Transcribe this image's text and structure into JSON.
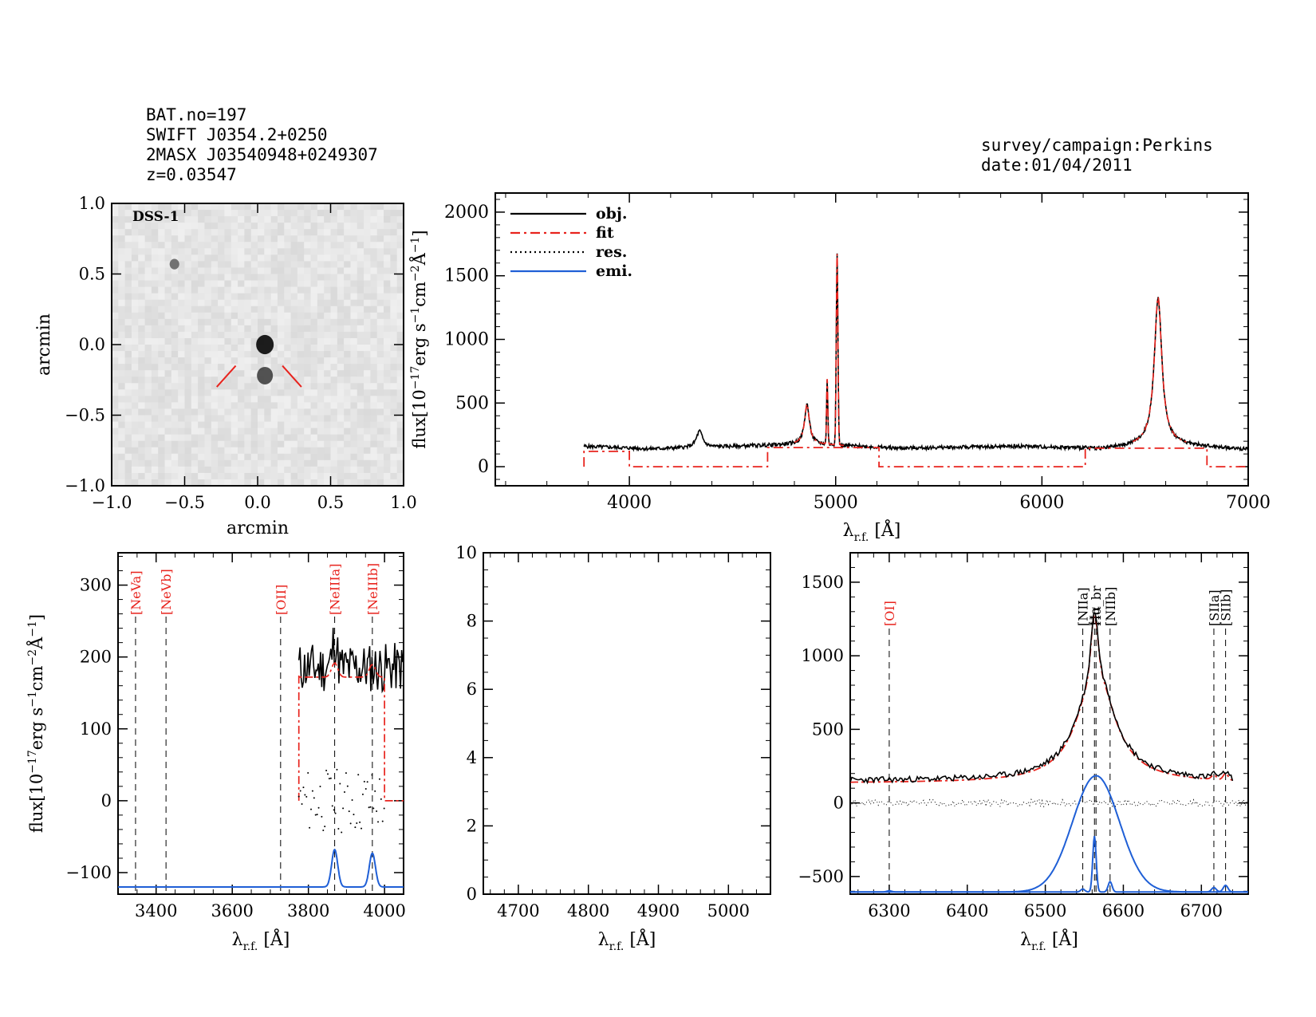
{
  "header": {
    "left_lines": [
      "BAT.no=197",
      "SWIFT J0354.2+0250",
      "2MASX J03540948+0249307",
      "z=0.03547"
    ],
    "right_lines": [
      "survey/campaign:Perkins",
      "date:01/04/2011"
    ]
  },
  "colors": {
    "object": "#000000",
    "fit": "#e8231d",
    "residual": "#000000",
    "emission": "#1f5fd6",
    "image_background": "#e6e6e6"
  },
  "image_panel": {
    "label": "DSS-1",
    "xlabel": "arcmin",
    "ylabel": "arcmin",
    "xlim": [
      -1.0,
      1.0
    ],
    "ylim": [
      -1.0,
      1.0
    ],
    "xticks": [
      "−1.0",
      "−0.5",
      "0.0",
      "0.5",
      "1.0"
    ],
    "yticks": [
      "1.0",
      "0.5",
      "0.0",
      "−0.5",
      "−1.0"
    ],
    "sources": [
      {
        "x": 0.05,
        "y": 0.0,
        "brightness": "bright"
      },
      {
        "x": 0.05,
        "y": -0.22,
        "brightness": "medium"
      },
      {
        "x": -0.57,
        "y": 0.57,
        "brightness": "faint"
      }
    ],
    "markers": "two red ticks pointing at center"
  },
  "chart_data": [
    {
      "type": "line",
      "panel": "full-spectrum",
      "xlabel": "λ_r.f. [Å]",
      "ylabel": "flux[10⁻¹⁷erg s⁻¹cm⁻²Å⁻¹]",
      "xlim": [
        3350,
        7000
      ],
      "ylim": [
        -150,
        2150
      ],
      "xticks": [
        4000,
        5000,
        6000,
        7000
      ],
      "yticks": [
        0,
        500,
        1000,
        1500,
        2000
      ],
      "legend": [
        "obj.",
        "fit",
        "res.",
        "emi."
      ],
      "legend_position": "top-left",
      "series": [
        {
          "name": "obj.",
          "style": "solid-black",
          "continuum": [
            [
              3780,
              160
            ],
            [
              3950,
              150
            ],
            [
              4100,
              140
            ],
            [
              4350,
              150
            ],
            [
              4700,
              170
            ],
            [
              4860,
              180
            ],
            [
              5300,
              145
            ],
            [
              5900,
              160
            ],
            [
              6300,
              140
            ],
            [
              6560,
              180
            ],
            [
              7000,
              135
            ]
          ],
          "lines": [
            {
              "center": 4340,
              "peak": 300,
              "width": 18
            },
            {
              "center": 4861,
              "peak": 480,
              "width": 14
            },
            {
              "center": 4959,
              "peak": 660,
              "width": 3
            },
            {
              "center": 5007,
              "peak": 1650,
              "width": 4
            },
            {
              "center": 6563,
              "peak": 1320,
              "width": 22
            }
          ]
        },
        {
          "name": "fit",
          "style": "dashdot-red",
          "segments": [
            [
              3780,
              0
            ],
            [
              3780,
              120
            ],
            [
              4000,
              120
            ],
            [
              4000,
              0
            ],
            [
              4670,
              0
            ],
            [
              4670,
              150
            ],
            [
              5210,
              150
            ],
            [
              5210,
              0
            ],
            [
              6210,
              0
            ],
            [
              6210,
              145
            ],
            [
              6800,
              145
            ],
            [
              6800,
              0
            ],
            [
              7000,
              0
            ]
          ]
        }
      ]
    },
    {
      "type": "line",
      "panel": "blue-region",
      "xlabel": "λ_r.f. [Å]",
      "ylabel": "flux[10⁻¹⁷erg s⁻¹cm⁻²Å⁻¹]",
      "xlim": [
        3300,
        4050
      ],
      "ylim": [
        -130,
        345
      ],
      "xticks": [
        3400,
        3600,
        3800,
        4000
      ],
      "yticks": [
        -100,
        0,
        100,
        200,
        300
      ],
      "line_markers": [
        {
          "label": "[NeVa]",
          "x": 3346,
          "color": "red"
        },
        {
          "label": "[NeVb]",
          "x": 3426,
          "color": "red"
        },
        {
          "label": "[OII]",
          "x": 3727,
          "color": "red"
        },
        {
          "label": "[NeIIIa]",
          "x": 3869,
          "color": "red"
        },
        {
          "label": "[NeIIIb]",
          "x": 3968,
          "color": "red"
        }
      ],
      "series": [
        {
          "name": "obj.",
          "style": "solid-black",
          "x_range": [
            3775,
            4050
          ],
          "level": 185,
          "noise": 35
        },
        {
          "name": "fit",
          "style": "dashdot-red",
          "x_range": [
            3775,
            4000
          ],
          "level": 175
        },
        {
          "name": "res.",
          "style": "dotted-black",
          "x_range": [
            3775,
            4000
          ],
          "level": 0
        },
        {
          "name": "emi.",
          "style": "solid-blue",
          "baseline": -120,
          "gaussians": [
            {
              "center": 3869,
              "amp": 52,
              "sigma": 8
            },
            {
              "center": 3968,
              "amp": 47,
              "sigma": 8
            }
          ]
        }
      ]
    },
    {
      "type": "line",
      "panel": "empty-middle",
      "xlabel": "λ_r.f. [Å]",
      "xlim": [
        4650,
        5060
      ],
      "ylim": [
        0,
        10
      ],
      "xticks": [
        4700,
        4800,
        4900,
        5000
      ],
      "yticks": [
        0,
        2,
        4,
        6,
        8,
        10
      ],
      "series": []
    },
    {
      "type": "line",
      "panel": "halpha-region",
      "xlabel": "λ_r.f. [Å]",
      "xlim": [
        6250,
        6760
      ],
      "ylim": [
        -620,
        1700
      ],
      "xticks": [
        6300,
        6400,
        6500,
        6600,
        6700
      ],
      "yticks": [
        -500,
        0,
        500,
        1000,
        1500
      ],
      "line_markers": [
        {
          "label": "[OI]",
          "x": 6300,
          "color": "red"
        },
        {
          "label": "[NIIa]",
          "x": 6548,
          "color": "black"
        },
        {
          "label": "Hα",
          "x": 6563,
          "color": "black"
        },
        {
          "label": "Hα_br",
          "x": 6565,
          "color": "black"
        },
        {
          "label": "[NIIb]",
          "x": 6583,
          "color": "black"
        },
        {
          "label": "[SIIa]",
          "x": 6716,
          "color": "black"
        },
        {
          "label": "[SIIb]",
          "x": 6731,
          "color": "black"
        }
      ],
      "series": [
        {
          "name": "obj.",
          "style": "solid-black",
          "continuum": 150,
          "broad": {
            "center": 6565,
            "amp": 780,
            "width": 28
          },
          "narrow": {
            "center": 6563,
            "amp": 380,
            "sigma": 4
          }
        },
        {
          "name": "fit",
          "style": "dashdot-red"
        },
        {
          "name": "res.",
          "style": "dotted-black",
          "level": 0
        },
        {
          "name": "emi.",
          "style": "solid-blue",
          "baseline": -605,
          "broad": {
            "center": 6565,
            "amp": 790,
            "sigma": 30
          },
          "narrow": [
            {
              "center": 6563,
              "amp": 380,
              "sigma": 2.2
            },
            {
              "center": 6548,
              "amp": 20,
              "sigma": 2.5
            },
            {
              "center": 6583,
              "amp": 70,
              "sigma": 2.5
            },
            {
              "center": 6716,
              "amp": 30,
              "sigma": 3
            },
            {
              "center": 6731,
              "amp": 45,
              "sigma": 3
            },
            {
              "center": 6300,
              "amp": 8,
              "sigma": 3
            }
          ]
        }
      ]
    }
  ]
}
